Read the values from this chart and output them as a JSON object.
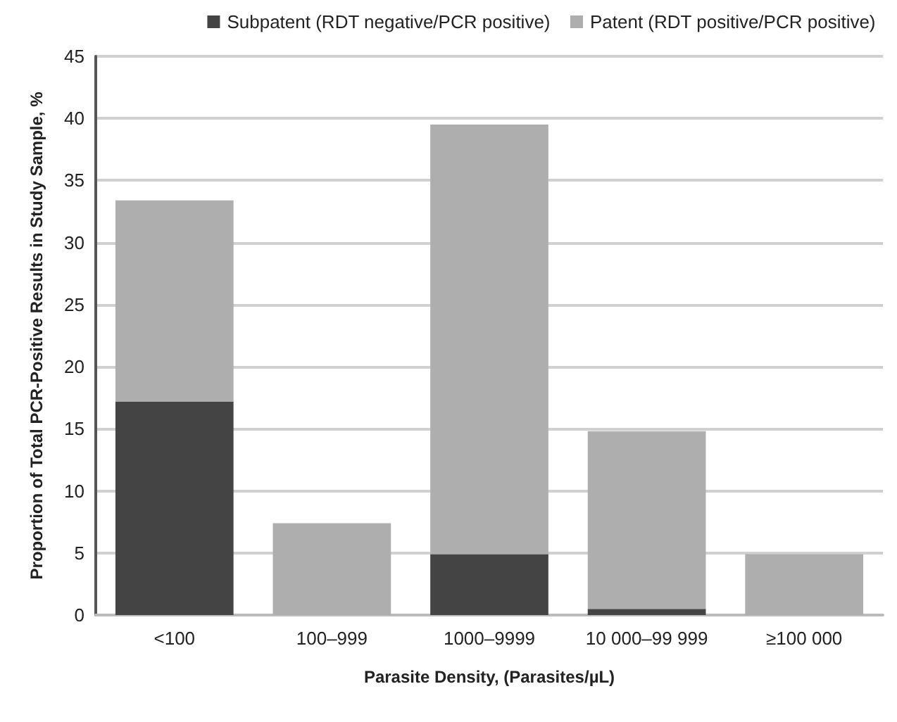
{
  "chart_data": {
    "type": "bar",
    "stacked": true,
    "xlabel": "Parasite Density, (Parasites/µL)",
    "ylabel": "Proportion of Total PCR-Positive Results in Study Sample, %",
    "categories": [
      "<100",
      "100–999",
      "1000–9999",
      "10 000–99 999",
      "≥100 000"
    ],
    "series": [
      {
        "name": "Subpatent (RDT negative/PCR positive)",
        "color": "#444444",
        "values": [
          17.2,
          0,
          4.9,
          0.5,
          0
        ]
      },
      {
        "name": "Patent (RDT positive/PCR positive)",
        "color": "#aeaeae",
        "values": [
          16.2,
          7.4,
          34.6,
          14.3,
          4.9
        ]
      }
    ],
    "ylim": [
      0,
      45
    ],
    "yticks": [
      0,
      5,
      10,
      15,
      20,
      25,
      30,
      35,
      40,
      45
    ],
    "grid": "y",
    "legend": "top right"
  }
}
